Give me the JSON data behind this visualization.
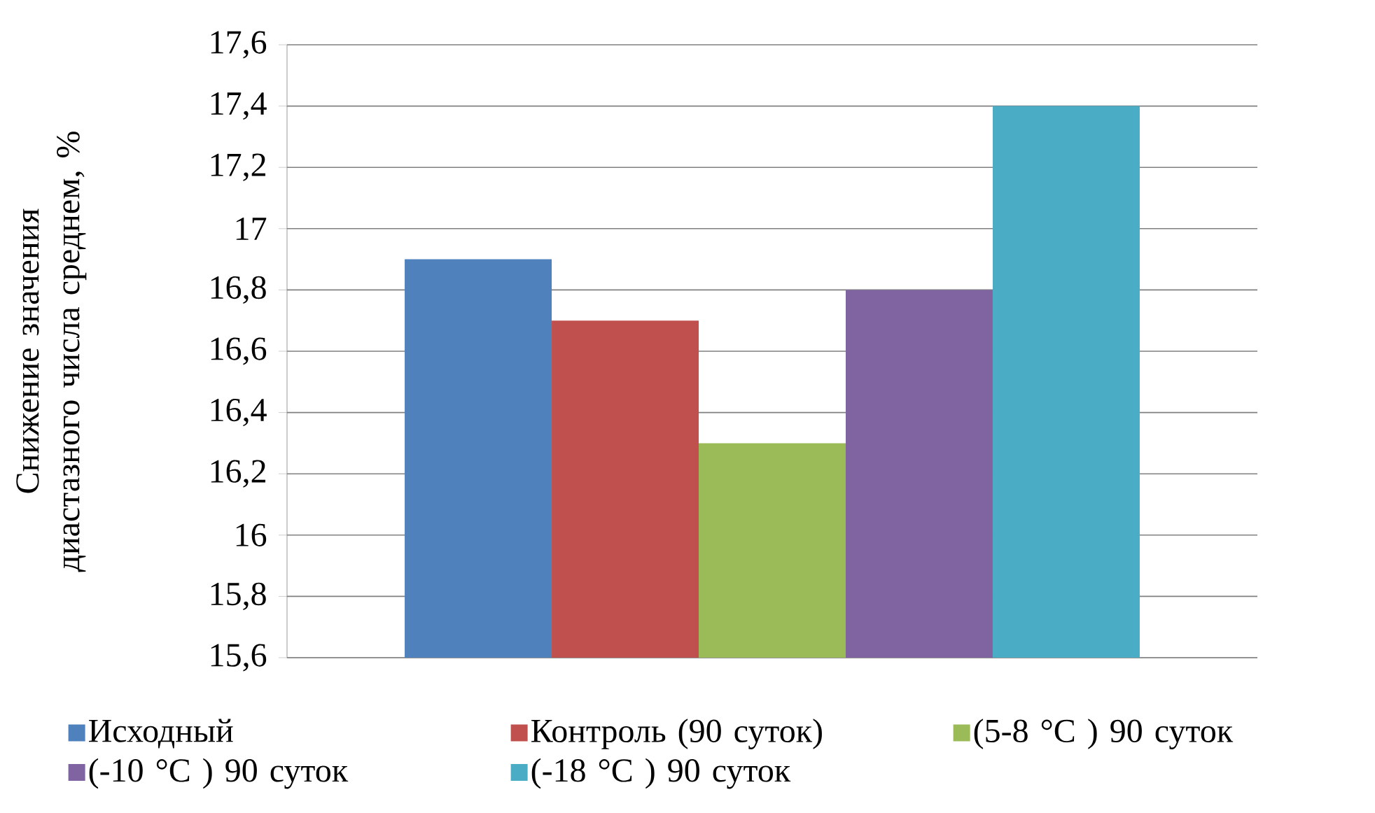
{
  "chart_data": {
    "type": "bar",
    "ylabel": "Снижение значения диастазного числа среднем, %",
    "categories": [
      null
    ],
    "series": [
      {
        "name": "Исходный",
        "color": "#4f81bd",
        "values": [
          16.9
        ]
      },
      {
        "name": "Контроль (90 суток)",
        "color": "#c0504d",
        "values": [
          16.7
        ]
      },
      {
        "name": "(5-8 °C ) 90 суток",
        "color": "#9bbb59",
        "values": [
          16.3
        ]
      },
      {
        "name": "(-10 °C ) 90 суток",
        "color": "#8064a2",
        "values": [
          16.8
        ]
      },
      {
        "name": "(-18 °C ) 90 суток",
        "color": "#4bacc6",
        "values": [
          17.4
        ]
      }
    ],
    "ylim": [
      15.6,
      17.6
    ],
    "yticks": [
      {
        "value": 15.6,
        "label": "15,6"
      },
      {
        "value": 15.8,
        "label": "15,8"
      },
      16,
      {
        "value": 16.2,
        "label": "16,2"
      },
      {
        "value": 16.4,
        "label": "16,4"
      },
      {
        "value": 16.6,
        "label": "16,6"
      },
      {
        "value": 16.8,
        "label": "16,8"
      },
      17,
      {
        "value": 17.2,
        "label": "17,2"
      },
      {
        "value": 17.4,
        "label": "17,4"
      },
      {
        "value": 17.6,
        "label": "17,6"
      }
    ],
    "grid": "y",
    "legend": "bottom"
  }
}
